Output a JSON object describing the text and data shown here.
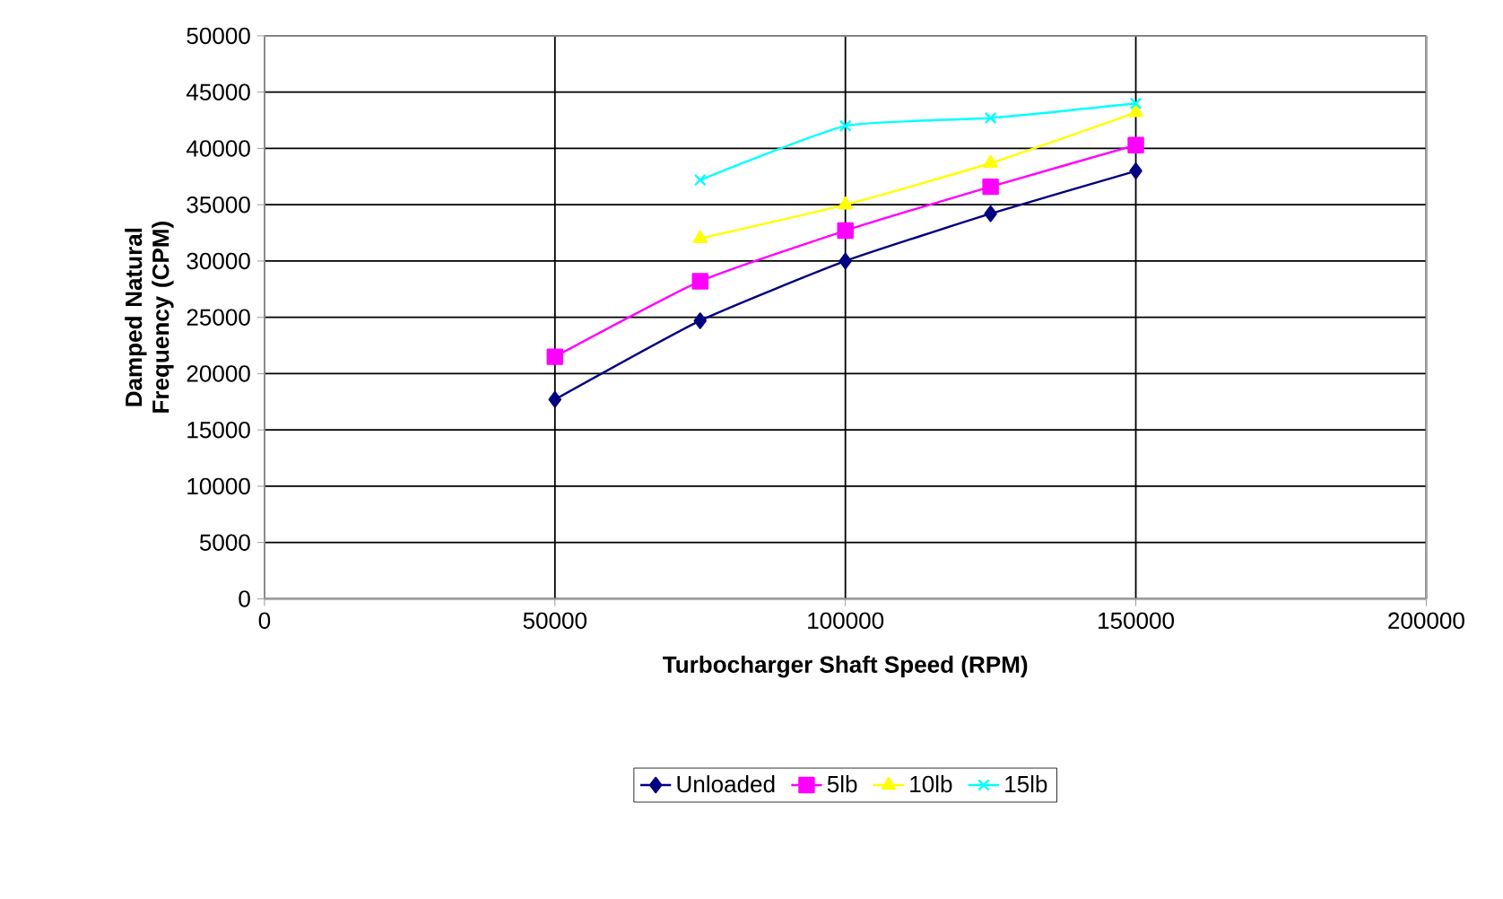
{
  "chart_data": {
    "type": "line",
    "xlabel": "Turbocharger Shaft Speed (RPM)",
    "ylabel": "Damped Natural Frequency (CPM)",
    "xlim": [
      0,
      200000
    ],
    "xticks": [
      0,
      50000,
      100000,
      150000,
      200000
    ],
    "ylim": [
      0,
      50000
    ],
    "yticks": [
      0,
      5000,
      10000,
      15000,
      20000,
      25000,
      30000,
      35000,
      40000,
      45000,
      50000
    ],
    "grid": true,
    "legend": "bottom",
    "series": [
      {
        "name": "Unloaded",
        "color": "#000080",
        "marker": "diamond",
        "x": [
          50000,
          75000,
          100000,
          125000,
          150000
        ],
        "values": [
          17700,
          24700,
          30000,
          34200,
          38000
        ]
      },
      {
        "name": "5lb",
        "color": "#ff00ff",
        "marker": "square",
        "x": [
          50000,
          75000,
          100000,
          125000,
          150000
        ],
        "values": [
          21500,
          28200,
          32700,
          36600,
          40300
        ]
      },
      {
        "name": "10lb",
        "color": "#ffff00",
        "marker": "triangle",
        "x": [
          75000,
          100000,
          125000,
          150000
        ],
        "values": [
          32000,
          35000,
          38700,
          43200
        ]
      },
      {
        "name": "15lb",
        "color": "#00ffff",
        "marker": "cross",
        "x": [
          75000,
          100000,
          125000,
          150000
        ],
        "values": [
          37200,
          42000,
          42700,
          44000
        ]
      }
    ]
  }
}
